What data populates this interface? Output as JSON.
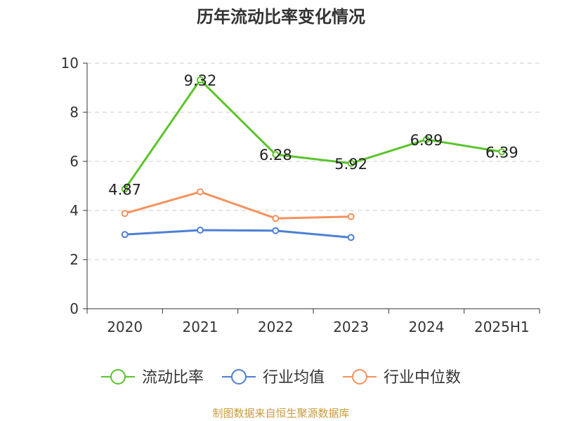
{
  "chart_data": {
    "type": "line",
    "title": "历年流动比率变化情况",
    "categories": [
      "2020",
      "2021",
      "2022",
      "2023",
      "2024",
      "2025H1"
    ],
    "ylim": [
      0,
      10
    ],
    "yticks": [
      "0",
      "2",
      "4",
      "6",
      "8",
      "10"
    ],
    "grid": true,
    "legend_position": "bottom",
    "series": [
      {
        "name": "流动比率",
        "color": "#5bc42b",
        "values": [
          4.87,
          9.32,
          6.28,
          5.92,
          6.89,
          6.39
        ],
        "labels": [
          "4.87",
          "9.32",
          "6.28",
          "5.92",
          "6.89",
          "6.39"
        ]
      },
      {
        "name": "行业均值",
        "color": "#4e7fd6",
        "values": [
          3.02,
          3.2,
          3.18,
          2.9,
          null,
          null
        ]
      },
      {
        "name": "行业中位数",
        "color": "#f4925b",
        "values": [
          3.88,
          4.76,
          3.68,
          3.75,
          null,
          null
        ]
      }
    ]
  },
  "footer": {
    "source": "制图数据来自恒生聚源数据库",
    "source_color": "#c89b3c"
  }
}
